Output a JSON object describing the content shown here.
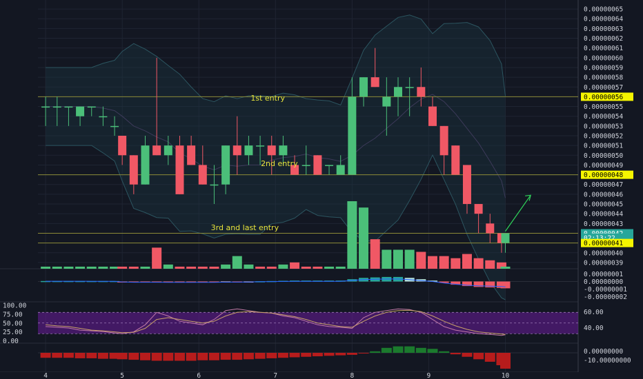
{
  "chart_data": {
    "type": "candlestick",
    "price_axis_labels": [
      "0.00000065",
      "0.00000064",
      "0.00000063",
      "0.00000062",
      "0.00000061",
      "0.00000060",
      "0.00000059",
      "0.00000058",
      "0.00000057",
      "0.00000056",
      "0.00000055",
      "0.00000054",
      "0.00000053",
      "0.00000052",
      "0.00000051",
      "0.00000050",
      "0.00000049",
      "0.00000048",
      "0.00000047",
      "0.00000046",
      "0.00000045",
      "0.00000044",
      "0.00000043",
      "0.00000042",
      "0.00000041",
      "0.00000040",
      "0.00000039"
    ],
    "price_ylim": [
      3.85e-07,
      6.55e-07
    ],
    "highlighted_prices": [
      {
        "label": "0.00000056",
        "bg": "#f5f500",
        "fg": "#000000"
      },
      {
        "label": "0.00000048",
        "bg": "#f5f500",
        "fg": "#000000"
      },
      {
        "label": "0.00000042",
        "bg": "#26a69a",
        "fg": "#ffffff"
      },
      {
        "label": "02:13:22",
        "bg": "#26a69a",
        "fg": "#ffffff",
        "price": 4.155e-07
      },
      {
        "label": "0.00000041",
        "bg": "#f5f500",
        "fg": "#000000"
      }
    ],
    "horizontal_levels": [
      5.6e-07,
      4.8e-07,
      4.2e-07,
      4.1e-07
    ],
    "annotations": [
      {
        "text": "1st entry",
        "price": 5.56e-07,
        "x_day": 6.9
      },
      {
        "text": "2nd entry",
        "price": 4.89e-07,
        "x_day": 7.05
      },
      {
        "text": "3rd and last entry",
        "price": 4.23e-07,
        "x_day": 6.6
      }
    ],
    "x_ticks": [
      "4",
      "5",
      "6",
      "7",
      "8",
      "9",
      "10"
    ],
    "x_tick_days": [
      4,
      5,
      6,
      7,
      8,
      9,
      10
    ],
    "candles": [
      {
        "x": 4.0,
        "o": 5.5e-07,
        "h": 5.6e-07,
        "l": 5.3e-07,
        "c": 5.5e-07
      },
      {
        "x": 4.15,
        "o": 5.5e-07,
        "h": 5.6e-07,
        "l": 5.3e-07,
        "c": 5.5e-07
      },
      {
        "x": 4.3,
        "o": 5.5e-07,
        "h": 5.5e-07,
        "l": 5.3e-07,
        "c": 5.5e-07
      },
      {
        "x": 4.45,
        "o": 5.4e-07,
        "h": 5.5e-07,
        "l": 5.3e-07,
        "c": 5.5e-07
      },
      {
        "x": 4.6,
        "o": 5.5e-07,
        "h": 5.5e-07,
        "l": 5.4e-07,
        "c": 5.5e-07
      },
      {
        "x": 4.75,
        "o": 5.4e-07,
        "h": 5.5e-07,
        "l": 5.3e-07,
        "c": 5.4e-07
      },
      {
        "x": 4.9,
        "o": 5.3e-07,
        "h": 5.4e-07,
        "l": 5.2e-07,
        "c": 5.3e-07
      },
      {
        "x": 5.0,
        "o": 5.2e-07,
        "h": 5.2e-07,
        "l": 4.9e-07,
        "c": 5e-07
      },
      {
        "x": 5.15,
        "o": 5e-07,
        "h": 5e-07,
        "l": 4.6e-07,
        "c": 4.7e-07
      },
      {
        "x": 5.3,
        "o": 4.7e-07,
        "h": 5.2e-07,
        "l": 4.7e-07,
        "c": 5.1e-07
      },
      {
        "x": 5.45,
        "o": 5.1e-07,
        "h": 6e-07,
        "l": 5e-07,
        "c": 5e-07
      },
      {
        "x": 5.6,
        "o": 5e-07,
        "h": 5.2e-07,
        "l": 4.9e-07,
        "c": 5.1e-07
      },
      {
        "x": 5.75,
        "o": 5.1e-07,
        "h": 5.2e-07,
        "l": 4.6e-07,
        "c": 4.6e-07
      },
      {
        "x": 5.9,
        "o": 5.1e-07,
        "h": 5.2e-07,
        "l": 4.9e-07,
        "c": 4.9e-07
      },
      {
        "x": 6.05,
        "o": 4.9e-07,
        "h": 5.1e-07,
        "l": 4.7e-07,
        "c": 4.7e-07
      },
      {
        "x": 6.2,
        "o": 4.7e-07,
        "h": 4.9e-07,
        "l": 4.5e-07,
        "c": 4.7e-07
      },
      {
        "x": 6.35,
        "o": 4.7e-07,
        "h": 5.1e-07,
        "l": 4.6e-07,
        "c": 5.1e-07
      },
      {
        "x": 6.5,
        "o": 5.1e-07,
        "h": 5.4e-07,
        "l": 4.8e-07,
        "c": 5e-07
      },
      {
        "x": 6.65,
        "o": 5e-07,
        "h": 5.2e-07,
        "l": 4.9e-07,
        "c": 5.1e-07
      },
      {
        "x": 6.8,
        "o": 5.1e-07,
        "h": 5.2e-07,
        "l": 4.9e-07,
        "c": 5.1e-07
      },
      {
        "x": 6.95,
        "o": 5.1e-07,
        "h": 5.2e-07,
        "l": 4.8e-07,
        "c": 5e-07
      },
      {
        "x": 7.1,
        "o": 5e-07,
        "h": 5.2e-07,
        "l": 4.9e-07,
        "c": 5.1e-07
      },
      {
        "x": 7.25,
        "o": 4.9e-07,
        "h": 5e-07,
        "l": 4.8e-07,
        "c": 4.8e-07
      },
      {
        "x": 7.4,
        "o": 4.9e-07,
        "h": 5.1e-07,
        "l": 4.8e-07,
        "c": 4.9e-07
      },
      {
        "x": 7.55,
        "o": 5e-07,
        "h": 5e-07,
        "l": 4.8e-07,
        "c": 4.8e-07
      },
      {
        "x": 7.7,
        "o": 4.9e-07,
        "h": 4.9e-07,
        "l": 4.8e-07,
        "c": 4.9e-07
      },
      {
        "x": 7.85,
        "o": 4.8e-07,
        "h": 5e-07,
        "l": 4.8e-07,
        "c": 4.9e-07
      },
      {
        "x": 8.0,
        "o": 4.8e-07,
        "h": 5.8e-07,
        "l": 4.8e-07,
        "c": 5.6e-07
      },
      {
        "x": 8.15,
        "o": 5.6e-07,
        "h": 5.8e-07,
        "l": 5.5e-07,
        "c": 5.8e-07
      },
      {
        "x": 8.3,
        "o": 5.8e-07,
        "h": 6.1e-07,
        "l": 5.7e-07,
        "c": 5.7e-07
      },
      {
        "x": 8.45,
        "o": 5.5e-07,
        "h": 5.8e-07,
        "l": 5.2e-07,
        "c": 5.6e-07
      },
      {
        "x": 8.6,
        "o": 5.6e-07,
        "h": 5.8e-07,
        "l": 5.4e-07,
        "c": 5.7e-07
      },
      {
        "x": 8.75,
        "o": 5.7e-07,
        "h": 5.8e-07,
        "l": 5.4e-07,
        "c": 5.7e-07
      },
      {
        "x": 8.9,
        "o": 5.7e-07,
        "h": 5.9e-07,
        "l": 5.5e-07,
        "c": 5.6e-07
      },
      {
        "x": 9.05,
        "o": 5.5e-07,
        "h": 5.6e-07,
        "l": 5.3e-07,
        "c": 5.3e-07
      },
      {
        "x": 9.2,
        "o": 5.3e-07,
        "h": 5.3e-07,
        "l": 4.8e-07,
        "c": 5e-07
      },
      {
        "x": 9.35,
        "o": 5.1e-07,
        "h": 5.1e-07,
        "l": 4.8e-07,
        "c": 4.8e-07
      },
      {
        "x": 9.5,
        "o": 4.9e-07,
        "h": 4.9e-07,
        "l": 4.4e-07,
        "c": 4.5e-07
      },
      {
        "x": 9.65,
        "o": 4.5e-07,
        "h": 4.5e-07,
        "l": 4.2e-07,
        "c": 4.4e-07
      },
      {
        "x": 9.8,
        "o": 4.3e-07,
        "h": 4.4e-07,
        "l": 4.1e-07,
        "c": 4.2e-07
      },
      {
        "x": 9.95,
        "o": 4.2e-07,
        "h": 4.2e-07,
        "l": 4e-07,
        "c": 4.1e-07
      },
      {
        "x": 10.0,
        "o": 4.1e-07,
        "h": 4.2e-07,
        "l": 4e-07,
        "c": 4.2e-07
      }
    ],
    "volume": {
      "x": [
        4.0,
        4.15,
        4.3,
        4.45,
        4.6,
        4.75,
        4.9,
        5.0,
        5.15,
        5.3,
        5.45,
        5.6,
        5.75,
        5.9,
        6.05,
        6.2,
        6.35,
        6.5,
        6.65,
        6.8,
        6.95,
        7.1,
        7.25,
        7.4,
        7.55,
        7.7,
        7.85,
        8.0,
        8.15,
        8.3,
        8.45,
        8.6,
        8.75,
        8.9,
        9.05,
        9.2,
        9.35,
        9.5,
        9.65,
        9.8,
        9.95,
        10.0
      ],
      "values": [
        1,
        1,
        1,
        1,
        1,
        1,
        1,
        1,
        1,
        1,
        10,
        2,
        1,
        1,
        1,
        1,
        2,
        6,
        2,
        1,
        1,
        2,
        3,
        1,
        1,
        1,
        1,
        32,
        29,
        14,
        9,
        9,
        9,
        8,
        6,
        6,
        5,
        7,
        5,
        4,
        3,
        1
      ],
      "up": [
        true,
        true,
        true,
        true,
        true,
        true,
        true,
        false,
        false,
        true,
        false,
        true,
        false,
        false,
        false,
        false,
        true,
        true,
        true,
        false,
        false,
        true,
        false,
        false,
        false,
        true,
        true,
        true,
        true,
        false,
        true,
        true,
        true,
        false,
        false,
        false,
        false,
        false,
        false,
        false,
        false,
        true
      ]
    },
    "macd_axis_labels": [
      "0.00000001",
      "0.00000000",
      "-0.00000001",
      "-0.00000002"
    ],
    "macd_ylim": [
      -2.5e-08,
      1.5e-08
    ],
    "macd_hist": [
      0.1,
      0.1,
      0.1,
      0.1,
      0.1,
      0.1,
      0.1,
      -0.1,
      -0.2,
      -0.2,
      -0.2,
      -0.2,
      -0.2,
      -0.2,
      -0.2,
      -0.2,
      -0.1,
      -0.1,
      -0.05,
      0.05,
      0.1,
      0.15,
      0.2,
      0.2,
      0.2,
      0.2,
      0.2,
      0.5,
      0.8,
      0.9,
      1.0,
      1.0,
      0.8,
      0.5,
      0.2,
      -0.3,
      -0.7,
      -1.0,
      -1.2,
      -1.3,
      -1.4,
      -1.5
    ],
    "rsi_axis_labels": [
      "100.00",
      "75.00",
      "50.00",
      "25.00",
      "0.00"
    ],
    "rsi_right_labels": [
      "60.00",
      "40.00"
    ],
    "rsi_ylim": [
      0,
      100
    ],
    "rsi_band": [
      20,
      80
    ],
    "rsi_line": [
      40,
      38,
      36,
      30,
      28,
      26,
      22,
      20,
      25,
      45,
      80,
      70,
      55,
      50,
      45,
      60,
      85,
      90,
      85,
      80,
      78,
      70,
      65,
      55,
      45,
      40,
      38,
      35,
      65,
      80,
      85,
      90,
      88,
      80,
      60,
      40,
      30,
      25,
      20,
      18,
      15,
      17
    ],
    "rsi_line2": [
      45,
      42,
      40,
      35,
      30,
      28,
      25,
      23,
      24,
      35,
      60,
      65,
      60,
      55,
      50,
      55,
      70,
      80,
      82,
      80,
      78,
      73,
      68,
      60,
      50,
      45,
      40,
      38,
      55,
      70,
      80,
      85,
      86,
      82,
      70,
      55,
      42,
      32,
      25,
      22,
      19,
      18
    ],
    "osc_axis_labels": [
      "0.00000000",
      "-10.00000000"
    ],
    "osc_hist": [
      -2,
      -2,
      -2,
      -2.2,
      -2.2,
      -2.4,
      -2.4,
      -2.6,
      -2.8,
      -3,
      -3.2,
      -3.2,
      -3.2,
      -3.2,
      -3,
      -3,
      -2.8,
      -2.8,
      -2.6,
      -2.4,
      -2.2,
      -2,
      -1.8,
      -1.6,
      -1.4,
      -1.2,
      -1,
      -0.8,
      -0.2,
      0.6,
      2,
      2.6,
      2.6,
      2,
      1.6,
      0.6,
      -0.6,
      -1.6,
      -2.6,
      -3.6,
      -5,
      -6.4
    ],
    "colors": {
      "background": "#131722",
      "up": "#4bbf79",
      "down": "#f05865",
      "grid": "#1f2432",
      "level": "#8d8b37",
      "rsi_band": "#6a1b9a",
      "osc_up": "#1b7a2d",
      "osc_down": "#b71c1c",
      "arrow": "#2fd45a"
    }
  }
}
